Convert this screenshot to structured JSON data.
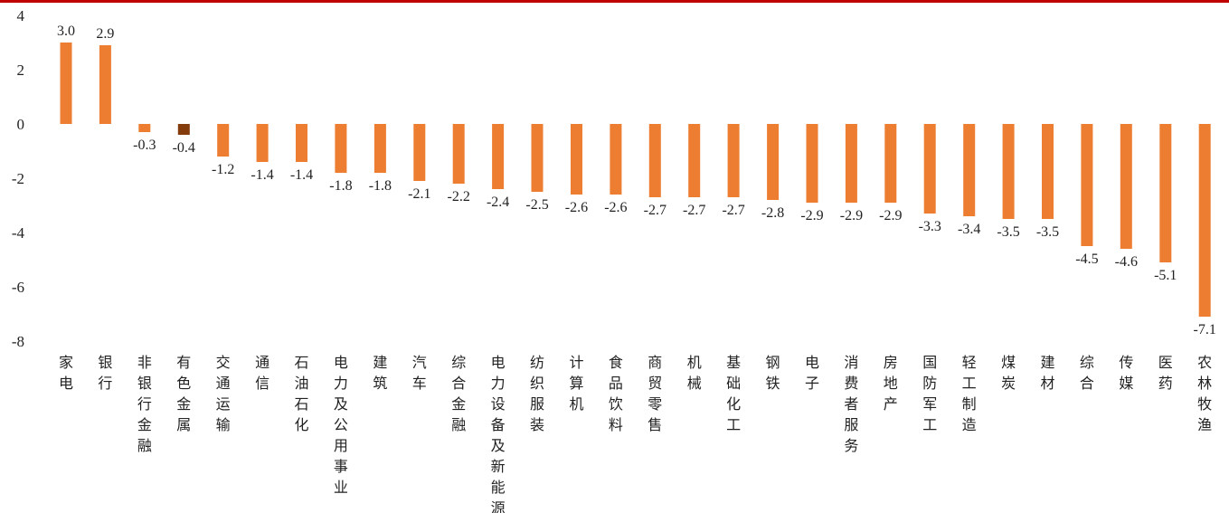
{
  "chart_data": {
    "type": "bar",
    "title": "",
    "xlabel": "",
    "ylabel": "",
    "ylim": [
      -8,
      4
    ],
    "yticks": [
      4,
      2,
      0,
      -2,
      -4,
      -6,
      -8
    ],
    "grid": false,
    "legend": "none",
    "colors": {
      "default": "#ed7d31",
      "highlight": "#843c0c",
      "rule": "#c00000"
    },
    "highlight_category": "有色金属",
    "categories": [
      "家电",
      "银行",
      "非银行金融",
      "有色金属",
      "交通运输",
      "通信",
      "石油石化",
      "电力及公用事业",
      "建筑",
      "汽车",
      "综合金融",
      "电力设备及新能源",
      "纺织服装",
      "计算机",
      "食品饮料",
      "商贸零售",
      "机械",
      "基础化工",
      "钢铁",
      "电子",
      "消费者服务",
      "房地产",
      "国防军工",
      "轻工制造",
      "煤炭",
      "建材",
      "综合",
      "传媒",
      "医药",
      "农林牧渔"
    ],
    "values": [
      3.0,
      2.9,
      -0.3,
      -0.4,
      -1.2,
      -1.4,
      -1.4,
      -1.8,
      -1.8,
      -2.1,
      -2.2,
      -2.4,
      -2.5,
      -2.6,
      -2.6,
      -2.7,
      -2.7,
      -2.7,
      -2.8,
      -2.9,
      -2.9,
      -2.9,
      -3.3,
      -3.4,
      -3.5,
      -3.5,
      -4.5,
      -4.6,
      -5.1,
      -7.1
    ],
    "value_labels": [
      "3.0",
      "2.9",
      "-0.3",
      "-0.4",
      "-1.2",
      "-1.4",
      "-1.4",
      "-1.8",
      "-1.8",
      "-2.1",
      "-2.2",
      "-2.4",
      "-2.5",
      "-2.6",
      "-2.6",
      "-2.7",
      "-2.7",
      "-2.7",
      "-2.8",
      "-2.9",
      "-2.9",
      "-2.9",
      "-3.3",
      "-3.4",
      "-3.5",
      "-3.5",
      "-4.5",
      "-4.6",
      "-5.1",
      "-7.1"
    ]
  }
}
